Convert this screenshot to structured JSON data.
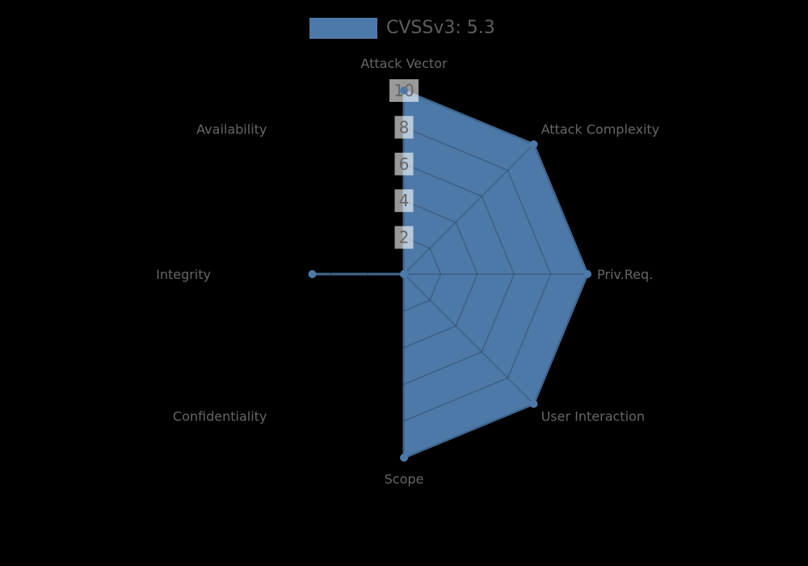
{
  "legend": {
    "label": "CVSSv3: 5.3"
  },
  "chart_data": {
    "type": "radar",
    "title": "",
    "categories": [
      "Attack Vector",
      "Attack Complexity",
      "Priv.Req.",
      "User Interaction",
      "Scope",
      "Confidentiality",
      "Integrity",
      "Availability"
    ],
    "series": [
      {
        "name": "CVSSv3: 5.3",
        "values": [
          10,
          10,
          10,
          10,
          10,
          0,
          5,
          0
        ]
      }
    ],
    "ticks": [
      "2",
      "4",
      "6",
      "8",
      "10"
    ],
    "rmin": 0,
    "rmax": 10,
    "start_axis": "top",
    "direction": "clockwise",
    "grid": true,
    "legend_position": "top-center"
  },
  "colors": {
    "background": "#000000",
    "series_fill": "#4d79a8",
    "series_border": "#4d79a8",
    "point_fill": "#4d79a8",
    "grid_line": "rgba(0,0,0,0.2)",
    "tick_backdrop": "rgba(255,255,255,0.6)",
    "tick_text": "#666666",
    "point_label_text": "#666666",
    "legend_text": "#5e5e5e"
  }
}
